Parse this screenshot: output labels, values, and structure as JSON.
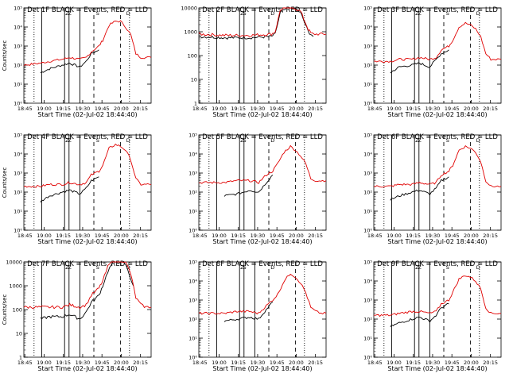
{
  "figure": {
    "x_tick_labels": [
      "18:45",
      "19:00",
      "19:15",
      "19:30",
      "19:45",
      "20:00",
      "20:15"
    ],
    "x_axis_label": "Start Time (02-Jul-02 18:44:40)",
    "y_axis_label": "Counts/sec",
    "series_colors": {
      "events": "#000000",
      "lld": "#e00000"
    }
  },
  "chart_data": [
    {
      "type": "line",
      "panel": 1,
      "title": "Det 1F BLACK = Events, RED = LLD",
      "xlabel": "Start Time (02-Jul-02 18:44:40)",
      "ylabel": "Counts/sec",
      "xlim": [
        0,
        100
      ],
      "scale": "log",
      "ylim_exp": [
        0,
        5
      ],
      "ytick_labels": [
        "10⁰",
        "10¹",
        "10²",
        "10³",
        "10⁴",
        "10⁵"
      ],
      "markers": [
        "Z",
        "Z",
        "S",
        "D"
      ],
      "series": [
        {
          "name": "Events",
          "color": "#000000",
          "x": [
            13,
            20,
            30,
            36,
            44,
            49,
            53,
            59
          ],
          "values": [
            1.6,
            1.8,
            2.0,
            2.1,
            1.9,
            2.2,
            2.6,
            2.8
          ]
        },
        {
          "name": "LLD",
          "color": "#e00000",
          "x": [
            0,
            13,
            20,
            30,
            36,
            44,
            49,
            53,
            59,
            62,
            67,
            72,
            76,
            80,
            84,
            88,
            92,
            96,
            100
          ],
          "values": [
            2.0,
            2.1,
            2.2,
            2.3,
            2.4,
            2.3,
            2.4,
            2.7,
            3.0,
            3.3,
            4.1,
            4.3,
            4.3,
            4.0,
            3.6,
            2.6,
            2.4,
            2.4,
            2.4
          ]
        }
      ]
    },
    {
      "type": "line",
      "panel": 2,
      "title": "Det 2F BLACK = Events, RED = LLD",
      "xlabel": "Start Time (02-Jul-02 18:44:40)",
      "ylabel": "",
      "xlim": [
        0,
        100
      ],
      "scale": "log",
      "ylim_exp": [
        0,
        4
      ],
      "ytick_labels": [
        "1",
        "10",
        "100",
        "1000",
        "10000"
      ],
      "markers": [
        "Z",
        "S",
        "D"
      ],
      "series": [
        {
          "name": "Events",
          "color": "#000000",
          "x": [
            0,
            20,
            40,
            57,
            60,
            64,
            70,
            75,
            80,
            86,
            88,
            90
          ],
          "values": [
            2.8,
            2.75,
            2.75,
            2.8,
            2.9,
            3.8,
            4.0,
            4.0,
            3.8,
            3.0,
            2.9,
            2.8
          ]
        },
        {
          "name": "LLD",
          "color": "#e00000",
          "x": [
            0,
            20,
            40,
            57,
            60,
            64,
            70,
            75,
            80,
            86,
            88,
            90,
            100
          ],
          "values": [
            2.9,
            2.85,
            2.85,
            2.9,
            3.0,
            3.9,
            4.2,
            4.0,
            3.85,
            3.1,
            2.95,
            2.9,
            2.9
          ]
        }
      ]
    },
    {
      "type": "line",
      "panel": 3,
      "title": "Det 3F BLACK = Events, RED = LLD",
      "xlabel": "Start Time (02-Jul-02 18:44:40)",
      "ylabel": "",
      "xlim": [
        0,
        100
      ],
      "scale": "log",
      "ylim_exp": [
        0,
        5
      ],
      "ytick_labels": [
        "10⁰",
        "10¹",
        "10²",
        "10³",
        "10⁴",
        "10⁵"
      ],
      "markers": [
        "Z",
        "Z",
        "S",
        "D"
      ],
      "series": [
        {
          "name": "Events",
          "color": "#000000",
          "x": [
            13,
            20,
            30,
            36,
            44,
            49,
            53,
            59
          ],
          "values": [
            1.6,
            1.9,
            2.0,
            2.1,
            1.9,
            2.3,
            2.6,
            2.8
          ]
        },
        {
          "name": "LLD",
          "color": "#e00000",
          "x": [
            0,
            13,
            20,
            30,
            36,
            44,
            49,
            53,
            59,
            62,
            67,
            72,
            76,
            80,
            84,
            88,
            92,
            96,
            100
          ],
          "values": [
            2.2,
            2.2,
            2.3,
            2.3,
            2.4,
            2.3,
            2.4,
            2.8,
            3.0,
            3.3,
            4.0,
            4.2,
            4.1,
            3.9,
            3.5,
            2.6,
            2.3,
            2.3,
            2.3
          ]
        }
      ]
    },
    {
      "type": "line",
      "panel": 4,
      "title": "Det 4F BLACK = Events, RED = LLD",
      "xlabel": "Start Time (02-Jul-02 18:44:40)",
      "ylabel": "Counts/sec",
      "xlim": [
        0,
        100
      ],
      "scale": "log",
      "ylim_exp": [
        0,
        5
      ],
      "ytick_labels": [
        "10⁰",
        "10¹",
        "10²",
        "10³",
        "10⁴",
        "10⁵"
      ],
      "markers": [
        "Z",
        "Z",
        "S",
        "D"
      ],
      "series": [
        {
          "name": "Events",
          "color": "#000000",
          "x": [
            13,
            20,
            30,
            36,
            44,
            49,
            53,
            59
          ],
          "values": [
            1.5,
            1.8,
            2.0,
            2.1,
            1.9,
            2.2,
            2.6,
            2.8
          ]
        },
        {
          "name": "LLD",
          "color": "#e00000",
          "x": [
            0,
            13,
            20,
            30,
            36,
            44,
            49,
            53,
            59,
            62,
            67,
            72,
            76,
            80,
            84,
            88,
            92,
            96,
            100
          ],
          "values": [
            2.3,
            2.3,
            2.4,
            2.4,
            2.5,
            2.4,
            2.5,
            2.9,
            3.1,
            3.4,
            4.3,
            4.5,
            4.4,
            4.2,
            3.7,
            2.7,
            2.4,
            2.4,
            2.4
          ]
        }
      ]
    },
    {
      "type": "line",
      "panel": 5,
      "title": "Det 5F BLACK = Events, RED = LLD",
      "xlabel": "Start Time (02-Jul-02 18:44:40)",
      "ylabel": "",
      "xlim": [
        0,
        100
      ],
      "scale": "log",
      "ylim_exp": [
        0,
        5
      ],
      "ytick_labels": [
        "10⁰",
        "10¹",
        "10²",
        "10³",
        "10⁴",
        "10⁵"
      ],
      "markers": [
        "Z",
        "S",
        "D"
      ],
      "series": [
        {
          "name": "Events",
          "color": "#000000",
          "x": [
            20,
            30,
            40,
            47,
            53,
            58
          ],
          "values": [
            1.8,
            1.9,
            2.1,
            2.0,
            2.5,
            2.9
          ]
        },
        {
          "name": "LLD",
          "color": "#e00000",
          "x": [
            0,
            20,
            30,
            40,
            47,
            53,
            58,
            62,
            67,
            72,
            76,
            80,
            84,
            88,
            92,
            96,
            100
          ],
          "values": [
            2.5,
            2.5,
            2.6,
            2.6,
            2.5,
            2.9,
            3.1,
            3.5,
            4.1,
            4.4,
            4.2,
            3.9,
            3.5,
            2.7,
            2.6,
            2.6,
            2.6
          ]
        }
      ]
    },
    {
      "type": "line",
      "panel": 6,
      "title": "Det 6F BLACK = Events, RED = LLD",
      "xlabel": "Start Time (02-Jul-02 18:44:40)",
      "ylabel": "",
      "xlim": [
        0,
        100
      ],
      "scale": "log",
      "ylim_exp": [
        0,
        5
      ],
      "ytick_labels": [
        "10⁰",
        "10¹",
        "10²",
        "10³",
        "10⁴",
        "10⁵"
      ],
      "markers": [
        "Z",
        "Z",
        "S",
        "D"
      ],
      "series": [
        {
          "name": "Events",
          "color": "#000000",
          "x": [
            13,
            20,
            30,
            36,
            44,
            49,
            53,
            59
          ],
          "values": [
            1.6,
            1.8,
            2.0,
            2.1,
            1.9,
            2.2,
            2.6,
            2.8
          ]
        },
        {
          "name": "LLD",
          "color": "#e00000",
          "x": [
            0,
            13,
            20,
            30,
            36,
            44,
            49,
            53,
            59,
            62,
            67,
            72,
            76,
            80,
            84,
            88,
            92,
            96,
            100
          ],
          "values": [
            2.3,
            2.3,
            2.4,
            2.4,
            2.5,
            2.4,
            2.5,
            2.9,
            3.1,
            3.4,
            4.2,
            4.4,
            4.3,
            4.1,
            3.6,
            2.6,
            2.3,
            2.3,
            2.3
          ]
        }
      ]
    },
    {
      "type": "line",
      "panel": 7,
      "title": "Det 7F BLACK = Events, RED = LLD",
      "xlabel": "Start Time (02-Jul-02 18:44:40)",
      "ylabel": "Counts/sec",
      "xlim": [
        0,
        100
      ],
      "scale": "log",
      "ylim_exp": [
        0,
        4
      ],
      "ytick_labels": [
        "1",
        "10",
        "100",
        "1000",
        "10000"
      ],
      "markers": [
        "Z",
        "Z",
        "S",
        "D"
      ],
      "series": [
        {
          "name": "Events",
          "color": "#000000",
          "x": [
            13,
            20,
            30,
            36,
            44,
            49,
            53,
            59,
            62,
            66,
            70,
            75,
            80,
            86
          ],
          "values": [
            1.6,
            1.7,
            1.7,
            1.8,
            1.6,
            1.9,
            2.3,
            2.6,
            3.0,
            3.6,
            4.0,
            4.0,
            3.9,
            3.0
          ]
        },
        {
          "name": "LLD",
          "color": "#e00000",
          "x": [
            0,
            13,
            20,
            30,
            36,
            44,
            49,
            53,
            59,
            62,
            66,
            70,
            75,
            80,
            84,
            88,
            92,
            96,
            100
          ],
          "values": [
            2.1,
            2.1,
            2.1,
            2.1,
            2.2,
            2.1,
            2.2,
            2.6,
            2.9,
            3.2,
            3.8,
            4.1,
            4.1,
            4.0,
            3.5,
            2.5,
            2.2,
            2.1,
            2.1
          ]
        }
      ]
    },
    {
      "type": "line",
      "panel": 8,
      "title": "Det 8F BLACK = Events, RED = LLD",
      "xlabel": "Start Time (02-Jul-02 18:44:40)",
      "ylabel": "",
      "xlim": [
        0,
        100
      ],
      "scale": "log",
      "ylim_exp": [
        0,
        5
      ],
      "ytick_labels": [
        "10⁰",
        "10¹",
        "10²",
        "10³",
        "10⁴",
        "10⁵"
      ],
      "markers": [
        "Z",
        "S",
        "D"
      ],
      "series": [
        {
          "name": "Events",
          "color": "#000000",
          "x": [
            20,
            30,
            40,
            47,
            53,
            58
          ],
          "values": [
            1.9,
            2.0,
            2.1,
            2.0,
            2.5,
            2.9
          ]
        },
        {
          "name": "LLD",
          "color": "#e00000",
          "x": [
            0,
            20,
            30,
            40,
            47,
            53,
            58,
            62,
            67,
            72,
            76,
            80,
            84,
            88,
            92,
            96,
            100
          ],
          "values": [
            2.3,
            2.3,
            2.4,
            2.4,
            2.3,
            2.7,
            3.0,
            3.3,
            4.0,
            4.4,
            4.2,
            3.9,
            3.4,
            2.6,
            2.4,
            2.3,
            2.3
          ]
        }
      ]
    },
    {
      "type": "line",
      "panel": 9,
      "title": "Det 9F BLACK = Events, RED = LLD",
      "xlabel": "Start Time (02-Jul-02 18:44:40)",
      "ylabel": "",
      "xlim": [
        0,
        100
      ],
      "scale": "log",
      "ylim_exp": [
        0,
        5
      ],
      "ytick_labels": [
        "10⁰",
        "10¹",
        "10²",
        "10³",
        "10⁴",
        "10⁵"
      ],
      "markers": [
        "Z",
        "Z",
        "S",
        "D"
      ],
      "series": [
        {
          "name": "Events",
          "color": "#000000",
          "x": [
            13,
            20,
            30,
            36,
            44,
            49,
            53,
            59
          ],
          "values": [
            1.6,
            1.8,
            2.0,
            2.1,
            1.9,
            2.2,
            2.6,
            2.8
          ]
        },
        {
          "name": "LLD",
          "color": "#e00000",
          "x": [
            0,
            13,
            20,
            30,
            36,
            44,
            49,
            53,
            59,
            62,
            67,
            72,
            76,
            80,
            84,
            88,
            92,
            96,
            100
          ],
          "values": [
            2.2,
            2.2,
            2.3,
            2.4,
            2.4,
            2.3,
            2.4,
            2.8,
            3.0,
            3.4,
            4.1,
            4.3,
            4.2,
            4.0,
            3.6,
            2.6,
            2.3,
            2.3,
            2.3
          ]
        }
      ]
    }
  ]
}
